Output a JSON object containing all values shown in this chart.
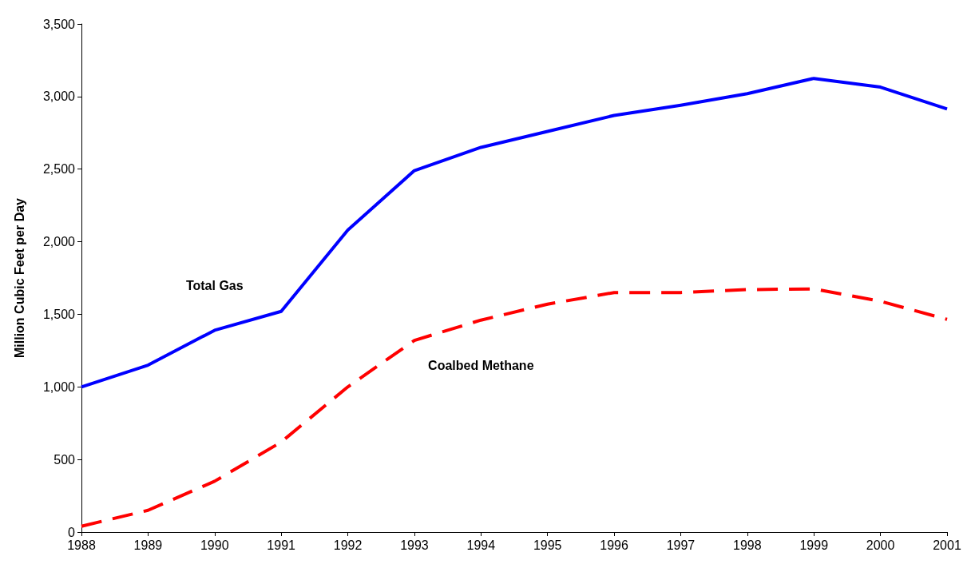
{
  "chart_data": {
    "type": "line",
    "ylabel": "Million Cubic Feet per Day",
    "categories": [
      "1988",
      "1989",
      "1990",
      "1991",
      "1992",
      "1993",
      "1994",
      "1995",
      "1996",
      "1997",
      "1998",
      "1999",
      "2000",
      "2001"
    ],
    "series": [
      {
        "name": "Total Gas",
        "color": "#0000ff",
        "line_style": "solid",
        "values": [
          1000,
          1150,
          1390,
          1520,
          2080,
          2490,
          2650,
          2760,
          2870,
          2940,
          3020,
          3125,
          3065,
          2915
        ]
      },
      {
        "name": "Coalbed Methane",
        "color": "#ff0000",
        "line_style": "dashed",
        "values": [
          40,
          150,
          350,
          620,
          1000,
          1320,
          1460,
          1570,
          1650,
          1650,
          1670,
          1675,
          1590,
          1465
        ]
      }
    ],
    "ylim": [
      0,
      3500
    ],
    "yticks": [
      0,
      500,
      {
        "value": 1000,
        "label": "1,000"
      },
      {
        "value": 1500,
        "label": "1,500"
      },
      {
        "value": 2000,
        "label": "2,000"
      },
      {
        "value": 2500,
        "label": "2,500"
      },
      {
        "value": 3000,
        "label": "3,000"
      },
      {
        "value": 3500,
        "label": "3,500"
      }
    ],
    "grid": false,
    "legend": false,
    "marker": "none"
  }
}
